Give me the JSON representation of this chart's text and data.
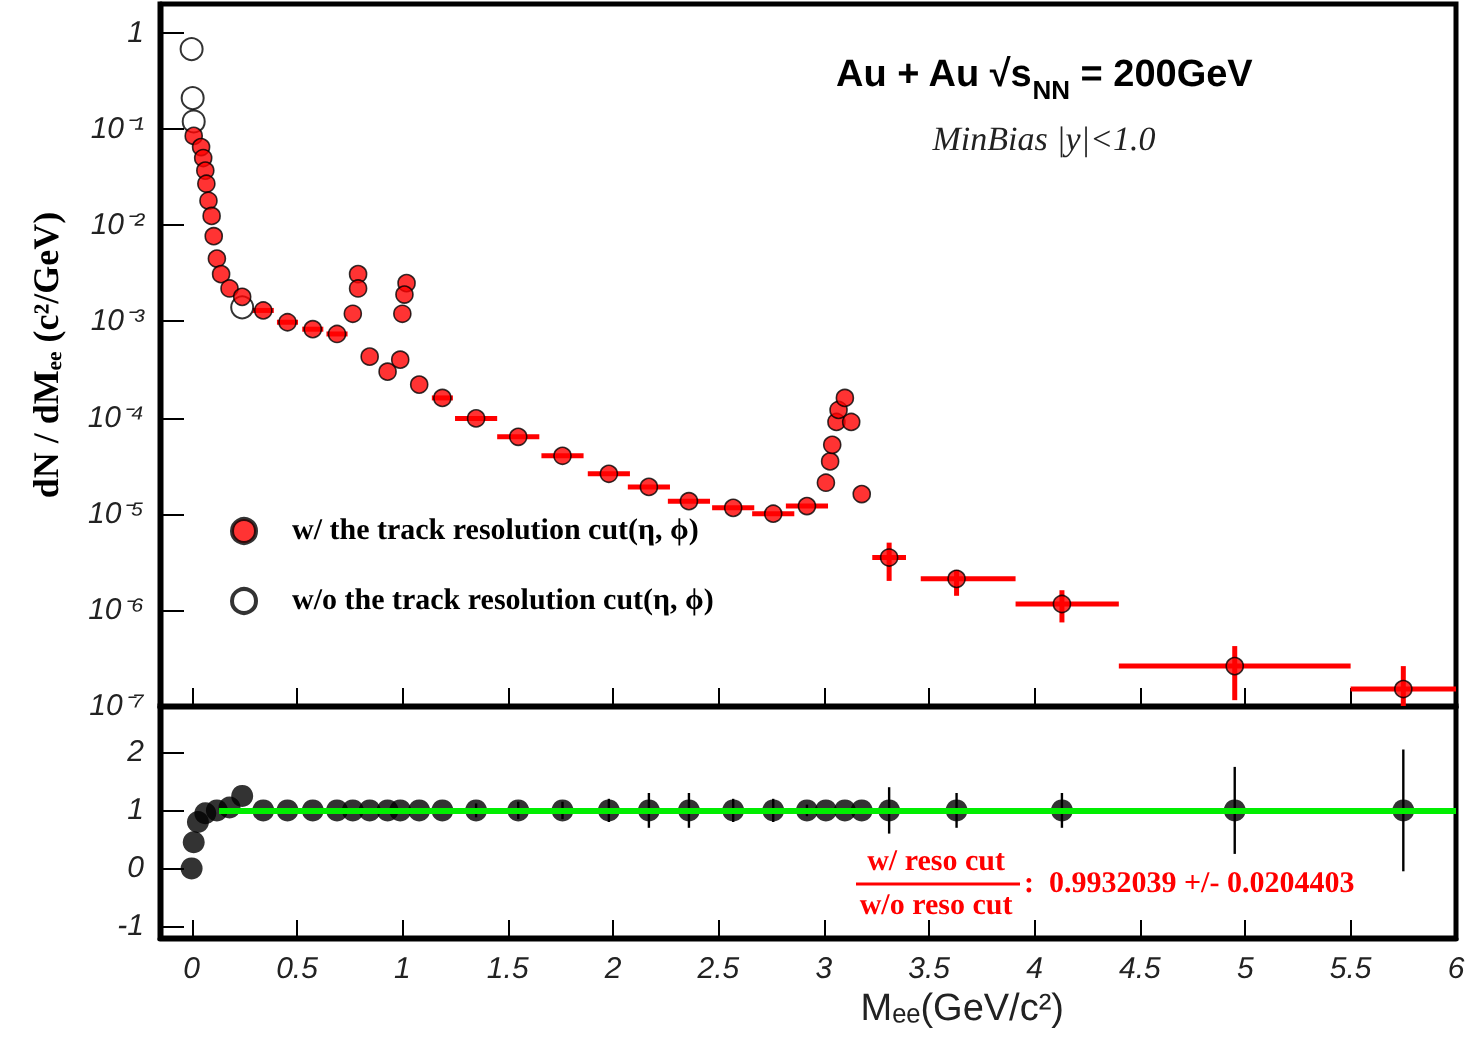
{
  "chart_data": [
    {
      "type": "scatter",
      "title": "Au + Au √s$_{NN}$ = 200GeV",
      "subtitle": "MinBias |y|<1.0",
      "ylabel": "dN / dMₑₑ (c²/GeV)",
      "log": "y",
      "xlim": [
        -0.15,
        6
      ],
      "xticks": [
        0,
        0.5,
        1,
        1.5,
        2,
        2.5,
        3,
        3.5,
        4,
        4.5,
        5,
        5.5,
        6
      ],
      "ylim": [
        1e-07,
        2
      ],
      "yticks": [
        1,
        {
          "value": 0.1,
          "label": "10⁻¹"
        },
        {
          "value": 0.01,
          "label": "10⁻²"
        },
        {
          "value": 0.001,
          "label": "10⁻³"
        },
        {
          "value": 0.0001,
          "label": "10⁻⁴"
        },
        {
          "value": 1e-05,
          "label": "10⁻⁵"
        },
        {
          "value": 1e-06,
          "label": "10⁻⁶"
        },
        {
          "value": 1e-07,
          "label": "10⁻⁷"
        }
      ],
      "tick_labels": "y",
      "legend": "bottom left",
      "marker": "circle",
      "series": [
        {
          "name": "w/ the track resolution cut(η, ϕ)",
          "color": "#ff0000",
          "x": [
            0.01,
            0.045,
            0.055,
            0.065,
            0.07,
            0.08,
            0.095,
            0.105,
            0.12,
            0.14,
            0.18,
            0.24,
            0.34,
            0.455,
            0.575,
            0.69,
            0.765,
            0.79,
            0.79,
            0.845,
            0.93,
            0.99,
            1.0,
            1.02,
            1.01,
            1.08,
            1.19,
            1.35,
            1.55,
            1.76,
            1.98,
            2.17,
            2.36,
            2.57,
            2.76,
            2.92,
            3.01,
            3.03,
            3.04,
            3.06,
            3.07,
            3.1,
            3.13,
            3.18,
            3.31,
            3.63,
            4.13,
            4.95,
            5.75
          ],
          "values": [
            0.085,
            0.065,
            0.05,
            0.037,
            0.027,
            0.018,
            0.0125,
            0.0077,
            0.0045,
            0.0031,
            0.0022,
            0.0018,
            0.0013,
            0.00098,
            0.00083,
            0.00074,
            0.0012,
            0.0031,
            0.0022,
            0.00043,
            0.0003,
            0.0004,
            0.0012,
            0.0025,
            0.0019,
            0.00022,
            0.00016,
            9.8e-05,
            6.3e-05,
            4e-05,
            2.6e-05,
            1.9e-05,
            1.35e-05,
            1.15e-05,
            1e-05,
            1.2e-05,
            2.1e-05,
            3.5e-05,
            5.2e-05,
            9e-05,
            0.00012,
            0.00016,
            9e-05,
            1.6e-05,
            3.5e-06,
            2.1e-06,
            1.15e-06,
            2.6e-07,
            1.5e-07
          ],
          "xerrors": [
            null,
            null,
            null,
            null,
            null,
            null,
            null,
            null,
            null,
            null,
            null,
            null,
            0.05,
            0.05,
            0.05,
            0.05,
            null,
            null,
            null,
            null,
            null,
            null,
            null,
            null,
            null,
            null,
            0.05,
            0.1,
            0.1,
            0.1,
            0.1,
            0.1,
            0.1,
            0.1,
            0.1,
            0.1,
            null,
            null,
            null,
            null,
            null,
            null,
            null,
            null,
            0.08,
            [
              3.46,
              3.91
            ],
            [
              3.91,
              4.4
            ],
            [
              4.4,
              5.5
            ],
            [
              5.5,
              6.0
            ]
          ],
          "errors": [
            null,
            null,
            null,
            null,
            null,
            null,
            null,
            null,
            null,
            null,
            null,
            null,
            null,
            null,
            null,
            null,
            null,
            null,
            null,
            null,
            null,
            null,
            null,
            null,
            null,
            null,
            null,
            null,
            null,
            null,
            null,
            null,
            null,
            null,
            null,
            null,
            null,
            null,
            null,
            null,
            null,
            null,
            null,
            null,
            [
              2e-06,
              5e-06
            ],
            [
              1.4e-06,
              2.6e-06
            ],
            [
              7.4e-07,
              1.6e-06
            ],
            [
              1.15e-07,
              4.2e-07
            ],
            [
              1e-07,
              2.6e-07
            ]
          ]
        },
        {
          "name": "w/o the track resolution cut(η, ϕ)",
          "color": "#000000",
          "x": [
            0,
            0.005,
            0.01,
            0.24
          ],
          "values": [
            0.68,
            0.21,
            0.12,
            0.0014
          ]
        }
      ]
    },
    {
      "type": "scatter",
      "xlabel": "Mₑₑ(GeV/c²)",
      "xlim": [
        -0.15,
        6
      ],
      "xticks": [
        0,
        0.5,
        1,
        1.5,
        2,
        2.5,
        3,
        3.5,
        4,
        4.5,
        5,
        5.5,
        6
      ],
      "ylim": [
        -1.2,
        2.8
      ],
      "yticks": [
        -1,
        0,
        1,
        2
      ],
      "marker": "circle",
      "annotations": [
        "w/ reso cut",
        "w/o reso cut",
        ":  0.9932039 +/- 0.0204403"
      ],
      "series": [
        {
          "color": "#000000",
          "x": [
            0,
            0.01,
            0.03,
            0.065,
            0.12,
            0.18,
            0.24,
            0.34,
            0.455,
            0.575,
            0.69,
            0.765,
            0.845,
            0.93,
            0.99,
            1.08,
            1.19,
            1.35,
            1.55,
            1.76,
            1.98,
            2.17,
            2.36,
            2.57,
            2.76,
            2.92,
            3.01,
            3.1,
            3.18,
            3.31,
            3.63,
            4.13,
            4.95,
            5.75
          ],
          "values": [
            0,
            0.45,
            0.8,
            0.95,
            1,
            1.05,
            1.25,
            1,
            1,
            1,
            1,
            1,
            1,
            1,
            1,
            1,
            1,
            1,
            1,
            1,
            1,
            1,
            1,
            1,
            1,
            1,
            1,
            1,
            1,
            1,
            1,
            1,
            1,
            1
          ],
          "errors": [
            null,
            null,
            null,
            null,
            null,
            null,
            null,
            null,
            null,
            null,
            null,
            null,
            null,
            null,
            null,
            null,
            null,
            0.12,
            0.15,
            0.15,
            0.2,
            0.3,
            0.3,
            0.2,
            0.2,
            0.1,
            null,
            null,
            null,
            0.4,
            0.3,
            0.3,
            0.75,
            1.05
          ]
        },
        {
          "type": "line",
          "color": "#00ee00",
          "marker": "none",
          "x": [
            0.13,
            6
          ],
          "values": [
            0.99,
            0.99
          ]
        }
      ]
    }
  ]
}
